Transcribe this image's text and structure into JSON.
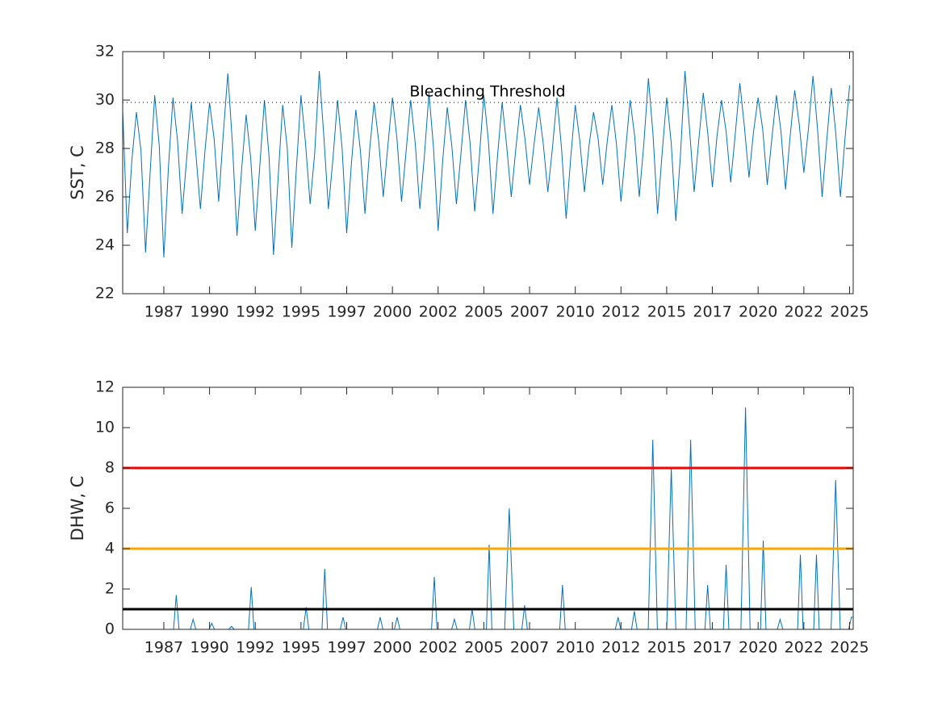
{
  "chart_data": [
    {
      "type": "line",
      "ylabel": "SST, C",
      "x": [
        1985.25,
        1985.5,
        1985.75,
        1986,
        1986.25,
        1986.5,
        1986.75,
        1987,
        1987.25,
        1987.5,
        1987.75,
        1988,
        1988.25,
        1988.5,
        1988.75,
        1989,
        1989.25,
        1989.5,
        1989.75,
        1990,
        1990.25,
        1990.5,
        1990.75,
        1991,
        1991.25,
        1991.5,
        1991.75,
        1992,
        1992.25,
        1992.5,
        1992.75,
        1993,
        1993.25,
        1993.5,
        1993.75,
        1994,
        1994.25,
        1994.5,
        1994.75,
        1995,
        1995.25,
        1995.5,
        1995.75,
        1996,
        1996.25,
        1996.5,
        1996.75,
        1997,
        1997.25,
        1997.5,
        1997.75,
        1998,
        1998.25,
        1998.5,
        1998.75,
        1999,
        1999.25,
        1999.5,
        1999.75,
        2000,
        2000.25,
        2000.5,
        2000.75,
        2001,
        2001.25,
        2001.5,
        2001.75,
        2002,
        2002.25,
        2002.5,
        2002.75,
        2003,
        2003.25,
        2003.5,
        2003.75,
        2004,
        2004.25,
        2004.5,
        2004.75,
        2005,
        2005.25,
        2005.5,
        2005.75,
        2006,
        2006.25,
        2006.5,
        2006.75,
        2007,
        2007.25,
        2007.5,
        2007.75,
        2008,
        2008.25,
        2008.5,
        2008.75,
        2009,
        2009.25,
        2009.5,
        2009.75,
        2010,
        2010.25,
        2010.5,
        2010.75,
        2011,
        2011.25,
        2011.5,
        2011.75,
        2012,
        2012.25,
        2012.5,
        2012.75,
        2013,
        2013.25,
        2013.5,
        2013.75,
        2014,
        2014.25,
        2014.5,
        2014.75,
        2015,
        2015.25,
        2015.5,
        2015.75,
        2016,
        2016.25,
        2016.5,
        2016.75,
        2017,
        2017.25,
        2017.5,
        2017.75,
        2018,
        2018.25,
        2018.5,
        2018.75,
        2019,
        2019.25,
        2019.5,
        2019.75,
        2020,
        2020.25,
        2020.5,
        2020.75,
        2021,
        2021.25,
        2021.5,
        2021.75,
        2022,
        2022.25,
        2022.5,
        2022.75,
        2023,
        2023.25,
        2023.5,
        2023.75,
        2024,
        2024.25,
        2024.5,
        2024.75,
        2025
      ],
      "series": [
        {
          "color": "#0072bd",
          "values": [
            29.6,
            24.5,
            27.5,
            29.5,
            27.9,
            23.7,
            27.0,
            30.2,
            28.1,
            23.5,
            27.2,
            30.1,
            28.3,
            25.3,
            27.6,
            29.9,
            27.8,
            25.5,
            27.9,
            29.9,
            28.4,
            25.8,
            28.6,
            31.1,
            28.2,
            24.4,
            27.1,
            29.4,
            27.6,
            24.6,
            27.3,
            30.0,
            27.7,
            23.6,
            26.8,
            29.8,
            28.0,
            23.9,
            27.2,
            30.2,
            28.2,
            25.7,
            27.8,
            31.2,
            28.5,
            25.5,
            27.6,
            30.0,
            28.0,
            24.5,
            27.3,
            29.6,
            27.9,
            25.3,
            27.9,
            29.9,
            28.3,
            26.0,
            28.1,
            30.1,
            28.4,
            25.8,
            27.9,
            30.0,
            28.2,
            25.5,
            27.7,
            30.3,
            28.0,
            24.6,
            27.5,
            29.7,
            28.1,
            25.7,
            27.8,
            30.0,
            28.2,
            25.4,
            27.6,
            30.2,
            28.3,
            25.3,
            27.7,
            29.9,
            28.1,
            26.0,
            28.0,
            29.8,
            28.4,
            26.5,
            28.2,
            29.7,
            28.2,
            26.2,
            28.0,
            30.1,
            28.0,
            25.1,
            27.6,
            29.8,
            28.3,
            26.2,
            28.1,
            29.5,
            28.4,
            26.5,
            28.3,
            29.8,
            28.2,
            25.8,
            27.9,
            30.0,
            28.5,
            26.0,
            28.2,
            30.9,
            28.6,
            25.3,
            27.8,
            30.1,
            28.2,
            25.0,
            27.7,
            31.2,
            28.8,
            26.2,
            28.3,
            30.3,
            28.6,
            26.4,
            28.5,
            30.0,
            28.7,
            26.6,
            28.6,
            30.7,
            28.9,
            26.8,
            28.7,
            30.1,
            28.8,
            26.5,
            28.4,
            30.2,
            28.7,
            26.3,
            28.5,
            30.4,
            29.0,
            27.0,
            28.8,
            31.0,
            28.8,
            26.0,
            28.3,
            30.5,
            28.6,
            26.0,
            28.4,
            30.6
          ]
        }
      ],
      "hlines": [
        {
          "value": 29.9,
          "color": "#000000",
          "style": "dotted",
          "label": "Bleaching Threshold"
        }
      ],
      "xlim": [
        1985.25,
        2025.2
      ],
      "xticks": [
        {
          "value": 1987.5,
          "label": "1987"
        },
        1990,
        {
          "value": 1992.5,
          "label": "1992"
        },
        1995,
        {
          "value": 1997.5,
          "label": "1997"
        },
        2000,
        {
          "value": 2002.5,
          "label": "2002"
        },
        2005,
        {
          "value": 2007.5,
          "label": "2007"
        },
        2010,
        {
          "value": 2012.5,
          "label": "2012"
        },
        2015,
        {
          "value": 2017.5,
          "label": "2017"
        },
        2020,
        {
          "value": 2022.5,
          "label": "2022"
        },
        2025
      ],
      "ylim": [
        22,
        32
      ],
      "yticks": [
        22,
        24,
        26,
        28,
        30,
        32
      ]
    },
    {
      "type": "line",
      "ylabel": "DHW, C",
      "x": [
        1985.25,
        1988.03,
        1988.18,
        1988.33,
        1988.95,
        1989.1,
        1989.25,
        1989.97,
        1990.12,
        1990.27,
        1991.05,
        1991.2,
        1991.35,
        1992.13,
        1992.28,
        1992.43,
        1995.13,
        1995.28,
        1995.43,
        1996.15,
        1996.3,
        1996.45,
        1997.15,
        1997.3,
        1997.45,
        1999.18,
        1999.33,
        1999.48,
        2000.11,
        2000.26,
        2000.41,
        2002.14,
        2002.29,
        2002.44,
        2003.24,
        2003.39,
        2003.54,
        2004.21,
        2004.36,
        2004.51,
        2005.14,
        2005.29,
        2005.44,
        2006.14,
        2006.39,
        2006.64,
        2007.08,
        2007.23,
        2007.38,
        2009.15,
        2009.3,
        2009.45,
        2012.19,
        2012.34,
        2012.49,
        2013.08,
        2013.23,
        2013.38,
        2013.99,
        2014.24,
        2014.49,
        2015.0,
        2015.25,
        2015.5,
        2016.06,
        2016.31,
        2016.56,
        2017.09,
        2017.24,
        2017.39,
        2018.1,
        2018.25,
        2018.4,
        2019.06,
        2019.31,
        2019.56,
        2020.13,
        2020.28,
        2020.43,
        2021.05,
        2021.2,
        2021.35,
        2022.16,
        2022.31,
        2022.46,
        2023.04,
        2023.19,
        2023.34,
        2023.99,
        2024.24,
        2024.49,
        2024.95,
        2025.1,
        2025.2
      ],
      "series": [
        {
          "color": "#0072bd",
          "values": [
            0,
            0,
            1.7,
            0,
            0,
            0.5,
            0,
            0,
            0.3,
            0,
            0,
            0.15,
            0,
            0,
            2.1,
            0,
            0,
            1.1,
            0,
            0,
            3.0,
            0,
            0,
            0.6,
            0,
            0,
            0.6,
            0,
            0,
            0.6,
            0,
            0,
            2.6,
            0,
            0,
            0.5,
            0,
            0,
            1.0,
            0,
            0,
            4.2,
            0,
            0,
            6.0,
            0,
            0,
            1.2,
            0,
            0,
            2.2,
            0,
            0,
            0.6,
            0,
            0,
            0.9,
            0,
            0,
            9.4,
            0,
            0,
            8.0,
            0,
            0,
            9.4,
            0,
            0,
            2.2,
            0,
            0,
            3.2,
            0,
            0,
            11.0,
            0,
            0,
            4.4,
            0,
            0,
            0.5,
            0,
            0,
            3.7,
            0,
            0,
            3.7,
            0,
            0,
            7.4,
            0,
            0,
            0.6,
            0.6
          ]
        }
      ],
      "hlines": [
        {
          "value": 1,
          "color": "#000000"
        },
        {
          "value": 4,
          "color": "#ffa500"
        },
        {
          "value": 8,
          "color": "#ff0000"
        }
      ],
      "xlim": [
        1985.25,
        2025.2
      ],
      "xticks": [
        {
          "value": 1987.5,
          "label": "1987"
        },
        1990,
        {
          "value": 1992.5,
          "label": "1992"
        },
        1995,
        {
          "value": 1997.5,
          "label": "1997"
        },
        2000,
        {
          "value": 2002.5,
          "label": "2002"
        },
        2005,
        {
          "value": 2007.5,
          "label": "2007"
        },
        2010,
        {
          "value": 2012.5,
          "label": "2012"
        },
        2015,
        {
          "value": 2017.5,
          "label": "2017"
        },
        2020,
        {
          "value": 2022.5,
          "label": "2022"
        },
        2025
      ],
      "ylim": [
        0,
        12
      ],
      "yticks": [
        0,
        2,
        4,
        6,
        8,
        10,
        12
      ]
    }
  ]
}
